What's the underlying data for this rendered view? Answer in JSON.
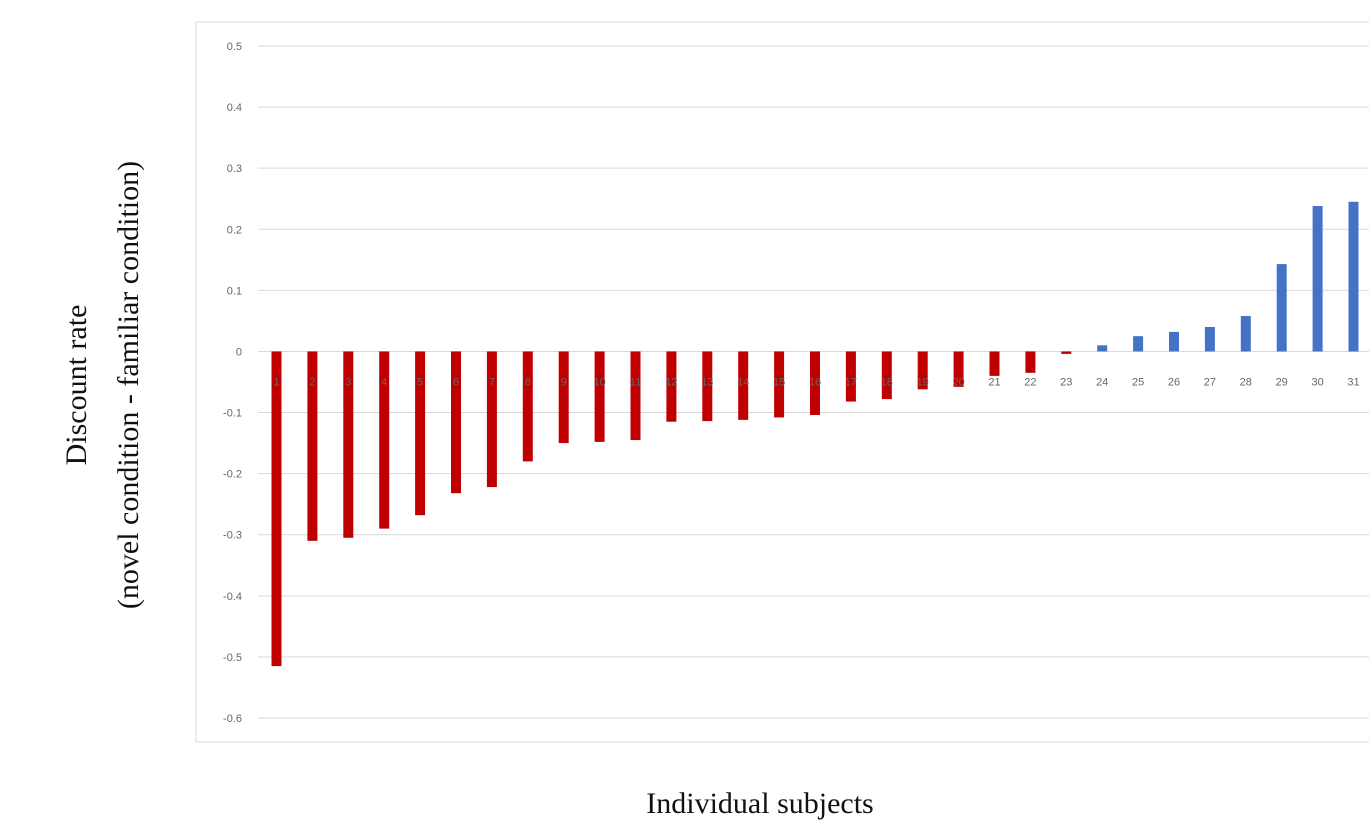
{
  "chart_data": {
    "type": "bar",
    "title": "",
    "xlabel": "Individual subjects",
    "ylabel_line1": "Discount rate",
    "ylabel_line2": "(novel condition - familiar condition)",
    "ylim": [
      -0.6,
      0.5
    ],
    "yticks": [
      0.5,
      0.4,
      0.3,
      0.2,
      0.1,
      0,
      -0.1,
      -0.2,
      -0.3,
      -0.4,
      -0.5,
      -0.6
    ],
    "ytick_labels": [
      "0.5",
      "0.4",
      "0.3",
      "0.2",
      "0.1",
      "0",
      "-0.1",
      "-0.2",
      "-0.3",
      "-0.4",
      "-0.5",
      "-0.6"
    ],
    "grid": true,
    "categories": [
      "1",
      "2",
      "3",
      "4",
      "5",
      "6",
      "7",
      "8",
      "9",
      "10",
      "11",
      "12",
      "13",
      "14",
      "15",
      "16",
      "17",
      "18",
      "19",
      "20",
      "21",
      "22",
      "23",
      "24",
      "25",
      "26",
      "27",
      "28",
      "29",
      "30",
      "31"
    ],
    "values": [
      -0.515,
      -0.31,
      -0.305,
      -0.29,
      -0.268,
      -0.232,
      -0.222,
      -0.18,
      -0.15,
      -0.148,
      -0.145,
      -0.115,
      -0.114,
      -0.112,
      -0.108,
      -0.104,
      -0.082,
      -0.078,
      -0.062,
      -0.058,
      -0.04,
      -0.035,
      -0.004,
      0.01,
      0.025,
      0.032,
      0.04,
      0.058,
      0.143,
      0.238,
      0.245
    ],
    "colors": {
      "negative": "#c00000",
      "positive": "#4472c4",
      "grid": "#d9d9d9",
      "frame": "#d9d9d9",
      "tick": "#666666"
    }
  }
}
